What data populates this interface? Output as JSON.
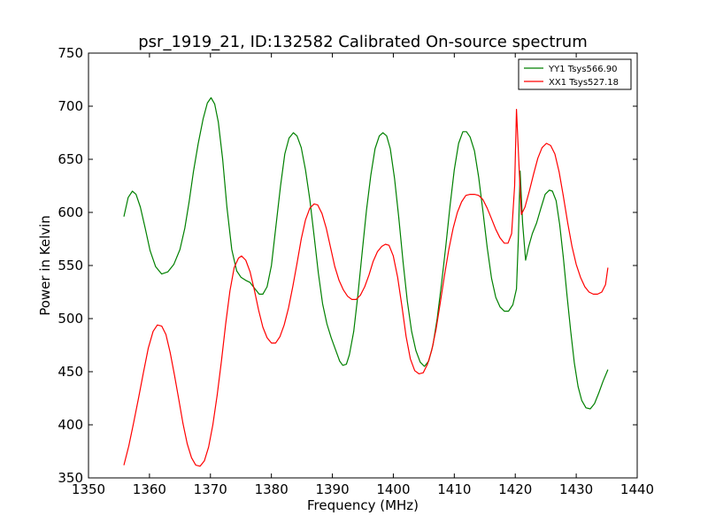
{
  "chart_data": {
    "type": "line",
    "title": "psr_1919_21, ID:132582 Calibrated On-source spectrum",
    "xlabel": "Frequency (MHz)",
    "ylabel": "Power in Kelvin",
    "xlim": [
      1350,
      1440
    ],
    "ylim": [
      350,
      750
    ],
    "xticks": [
      "1350",
      "1360",
      "1370",
      "1380",
      "1390",
      "1400",
      "1410",
      "1420",
      "1430",
      "1440"
    ],
    "yticks": [
      "350",
      "400",
      "450",
      "500",
      "550",
      "600",
      "650",
      "700",
      "750"
    ],
    "grid": false,
    "legend_position": "top-right",
    "series": [
      {
        "name": "YY1 Tsys566.90",
        "color": "#008000",
        "points": [
          [
            1355.8,
            596
          ],
          [
            1356.5,
            614
          ],
          [
            1357.2,
            620
          ],
          [
            1357.8,
            617
          ],
          [
            1358.5,
            605
          ],
          [
            1359.3,
            585
          ],
          [
            1360.1,
            564
          ],
          [
            1361.0,
            549
          ],
          [
            1362.0,
            542
          ],
          [
            1363.0,
            544
          ],
          [
            1364.0,
            551
          ],
          [
            1365.0,
            565
          ],
          [
            1365.8,
            585
          ],
          [
            1366.5,
            610
          ],
          [
            1367.2,
            638
          ],
          [
            1368.0,
            665
          ],
          [
            1368.8,
            688
          ],
          [
            1369.5,
            703
          ],
          [
            1370.1,
            708
          ],
          [
            1370.7,
            702
          ],
          [
            1371.3,
            685
          ],
          [
            1372.0,
            650
          ],
          [
            1372.7,
            605
          ],
          [
            1373.5,
            565
          ],
          [
            1374.3,
            545
          ],
          [
            1375.0,
            539
          ],
          [
            1375.8,
            536
          ],
          [
            1376.5,
            534
          ],
          [
            1377.3,
            528
          ],
          [
            1378.0,
            523
          ],
          [
            1378.6,
            523
          ],
          [
            1379.3,
            530
          ],
          [
            1380.0,
            550
          ],
          [
            1380.7,
            585
          ],
          [
            1381.5,
            625
          ],
          [
            1382.2,
            655
          ],
          [
            1382.9,
            670
          ],
          [
            1383.6,
            675
          ],
          [
            1384.2,
            672
          ],
          [
            1384.9,
            661
          ],
          [
            1385.6,
            640
          ],
          [
            1386.3,
            612
          ],
          [
            1387.0,
            578
          ],
          [
            1387.7,
            543
          ],
          [
            1388.4,
            514
          ],
          [
            1389.1,
            495
          ],
          [
            1389.8,
            482
          ],
          [
            1390.5,
            471
          ],
          [
            1391.2,
            460
          ],
          [
            1391.7,
            456
          ],
          [
            1392.3,
            457
          ],
          [
            1392.8,
            466
          ],
          [
            1393.5,
            488
          ],
          [
            1394.2,
            523
          ],
          [
            1394.9,
            563
          ],
          [
            1395.6,
            602
          ],
          [
            1396.3,
            635
          ],
          [
            1397.0,
            660
          ],
          [
            1397.7,
            672
          ],
          [
            1398.3,
            675
          ],
          [
            1398.9,
            672
          ],
          [
            1399.5,
            660
          ],
          [
            1400.2,
            632
          ],
          [
            1400.9,
            595
          ],
          [
            1401.6,
            553
          ],
          [
            1402.3,
            516
          ],
          [
            1403.0,
            488
          ],
          [
            1403.7,
            470
          ],
          [
            1404.4,
            459
          ],
          [
            1405.1,
            455
          ],
          [
            1405.8,
            460
          ],
          [
            1406.5,
            475
          ],
          [
            1407.2,
            500
          ],
          [
            1407.9,
            533
          ],
          [
            1408.6,
            568
          ],
          [
            1409.3,
            606
          ],
          [
            1410.0,
            640
          ],
          [
            1410.7,
            665
          ],
          [
            1411.4,
            676
          ],
          [
            1412.0,
            676
          ],
          [
            1412.6,
            671
          ],
          [
            1413.3,
            658
          ],
          [
            1414.0,
            633
          ],
          [
            1414.7,
            601
          ],
          [
            1415.4,
            567
          ],
          [
            1416.1,
            538
          ],
          [
            1416.8,
            520
          ],
          [
            1417.5,
            511
          ],
          [
            1418.2,
            507
          ],
          [
            1418.9,
            507
          ],
          [
            1419.6,
            513
          ],
          [
            1420.2,
            528
          ],
          [
            1420.5,
            575
          ],
          [
            1420.8,
            639
          ],
          [
            1421.2,
            590
          ],
          [
            1421.7,
            555
          ],
          [
            1422.2,
            568
          ],
          [
            1422.8,
            580
          ],
          [
            1423.5,
            590
          ],
          [
            1424.2,
            604
          ],
          [
            1424.9,
            617
          ],
          [
            1425.6,
            621
          ],
          [
            1426.1,
            620
          ],
          [
            1426.7,
            611
          ],
          [
            1427.3,
            588
          ],
          [
            1427.9,
            557
          ],
          [
            1428.5,
            521
          ],
          [
            1429.1,
            488
          ],
          [
            1429.7,
            458
          ],
          [
            1430.3,
            436
          ],
          [
            1430.9,
            423
          ],
          [
            1431.6,
            416
          ],
          [
            1432.3,
            415
          ],
          [
            1433.0,
            420
          ],
          [
            1433.7,
            430
          ],
          [
            1434.4,
            441
          ],
          [
            1435.2,
            452
          ]
        ]
      },
      {
        "name": "XX1 Tsys527.18",
        "color": "#ff0000",
        "points": [
          [
            1355.8,
            362
          ],
          [
            1356.6,
            380
          ],
          [
            1357.4,
            402
          ],
          [
            1358.2,
            425
          ],
          [
            1359.0,
            449
          ],
          [
            1359.8,
            472
          ],
          [
            1360.6,
            488
          ],
          [
            1361.3,
            494
          ],
          [
            1362.0,
            493
          ],
          [
            1362.7,
            485
          ],
          [
            1363.4,
            468
          ],
          [
            1364.1,
            447
          ],
          [
            1364.8,
            424
          ],
          [
            1365.5,
            401
          ],
          [
            1366.2,
            382
          ],
          [
            1366.9,
            369
          ],
          [
            1367.6,
            362
          ],
          [
            1368.3,
            361
          ],
          [
            1369.0,
            366
          ],
          [
            1369.7,
            379
          ],
          [
            1370.4,
            400
          ],
          [
            1371.1,
            428
          ],
          [
            1371.8,
            460
          ],
          [
            1372.5,
            495
          ],
          [
            1373.2,
            526
          ],
          [
            1373.9,
            548
          ],
          [
            1374.6,
            557
          ],
          [
            1375.1,
            559
          ],
          [
            1375.8,
            555
          ],
          [
            1376.5,
            544
          ],
          [
            1377.2,
            527
          ],
          [
            1377.9,
            508
          ],
          [
            1378.6,
            492
          ],
          [
            1379.3,
            482
          ],
          [
            1380.0,
            477
          ],
          [
            1380.7,
            477
          ],
          [
            1381.4,
            483
          ],
          [
            1382.1,
            494
          ],
          [
            1382.8,
            510
          ],
          [
            1383.5,
            530
          ],
          [
            1384.2,
            552
          ],
          [
            1384.9,
            575
          ],
          [
            1385.6,
            593
          ],
          [
            1386.3,
            604
          ],
          [
            1387.0,
            608
          ],
          [
            1387.6,
            607
          ],
          [
            1388.3,
            599
          ],
          [
            1389.0,
            585
          ],
          [
            1389.7,
            567
          ],
          [
            1390.4,
            549
          ],
          [
            1391.1,
            536
          ],
          [
            1391.8,
            527
          ],
          [
            1392.5,
            521
          ],
          [
            1393.2,
            518
          ],
          [
            1393.9,
            518
          ],
          [
            1394.6,
            522
          ],
          [
            1395.3,
            530
          ],
          [
            1396.0,
            541
          ],
          [
            1396.7,
            554
          ],
          [
            1397.4,
            563
          ],
          [
            1398.1,
            568
          ],
          [
            1398.7,
            570
          ],
          [
            1399.3,
            569
          ],
          [
            1400.0,
            559
          ],
          [
            1400.7,
            539
          ],
          [
            1401.4,
            512
          ],
          [
            1402.1,
            483
          ],
          [
            1402.8,
            462
          ],
          [
            1403.5,
            451
          ],
          [
            1404.2,
            448
          ],
          [
            1404.9,
            449
          ],
          [
            1405.6,
            457
          ],
          [
            1406.3,
            470
          ],
          [
            1407.0,
            490
          ],
          [
            1407.7,
            515
          ],
          [
            1408.4,
            541
          ],
          [
            1409.1,
            565
          ],
          [
            1409.8,
            585
          ],
          [
            1410.5,
            600
          ],
          [
            1411.2,
            610
          ],
          [
            1411.9,
            616
          ],
          [
            1412.6,
            617
          ],
          [
            1413.3,
            617
          ],
          [
            1414.0,
            616
          ],
          [
            1414.7,
            612
          ],
          [
            1415.4,
            604
          ],
          [
            1416.1,
            594
          ],
          [
            1416.8,
            584
          ],
          [
            1417.5,
            576
          ],
          [
            1418.2,
            571
          ],
          [
            1418.8,
            571
          ],
          [
            1419.4,
            580
          ],
          [
            1419.9,
            625
          ],
          [
            1420.2,
            697
          ],
          [
            1420.6,
            645
          ],
          [
            1421.0,
            598
          ],
          [
            1421.6,
            605
          ],
          [
            1422.3,
            620
          ],
          [
            1423.0,
            636
          ],
          [
            1423.7,
            651
          ],
          [
            1424.4,
            661
          ],
          [
            1425.1,
            665
          ],
          [
            1425.8,
            663
          ],
          [
            1426.5,
            655
          ],
          [
            1427.2,
            638
          ],
          [
            1427.9,
            615
          ],
          [
            1428.6,
            590
          ],
          [
            1429.3,
            568
          ],
          [
            1430.0,
            551
          ],
          [
            1430.7,
            539
          ],
          [
            1431.4,
            530
          ],
          [
            1432.1,
            525
          ],
          [
            1432.8,
            523
          ],
          [
            1433.5,
            523
          ],
          [
            1434.2,
            525
          ],
          [
            1434.8,
            532
          ],
          [
            1435.2,
            548
          ]
        ]
      }
    ]
  }
}
